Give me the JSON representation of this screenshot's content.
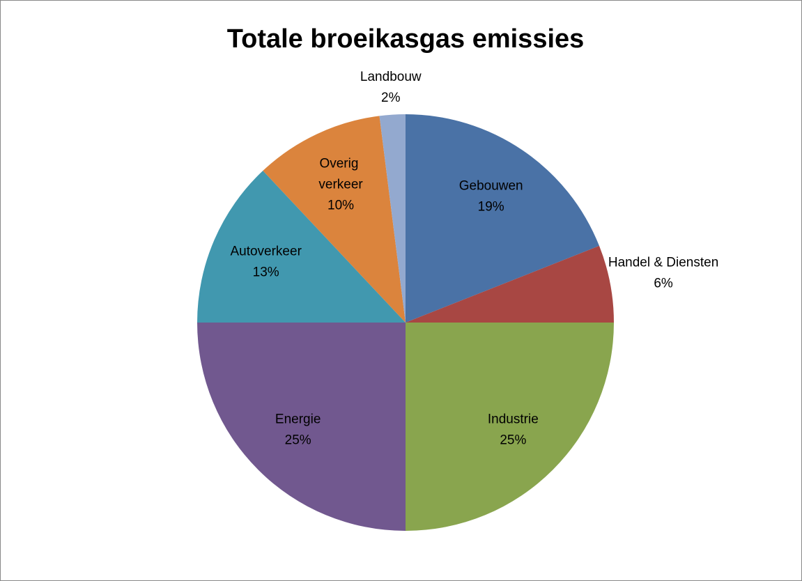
{
  "chart_data": {
    "type": "pie",
    "title": "Totale broeikasgas emissies",
    "categories": [
      "Gebouwen",
      "Handel & Diensten",
      "Industrie",
      "Energie",
      "Autoverkeer",
      "Overig verkeer",
      "Landbouw"
    ],
    "values": [
      19,
      6,
      25,
      25,
      13,
      10,
      2
    ],
    "value_labels": [
      "19%",
      "6%",
      "25%",
      "25%",
      "13%",
      "10%",
      "2%"
    ],
    "colors": [
      "#4a72a6",
      "#a84743",
      "#89a54e",
      "#71588f",
      "#4198af",
      "#db843d",
      "#93a9cf"
    ]
  }
}
